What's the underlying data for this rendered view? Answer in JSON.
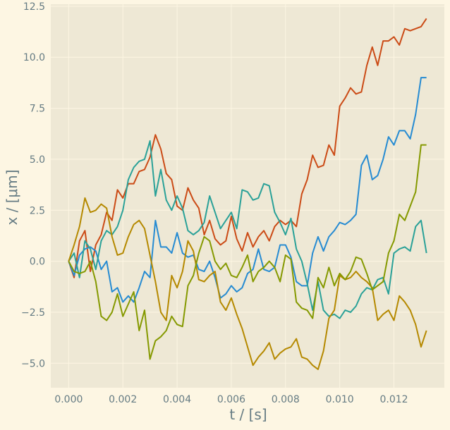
{
  "chart_data": {
    "type": "line",
    "title": "",
    "xlabel": "t / [s]",
    "ylabel": "x / [μm]",
    "xlim": [
      -0.00066,
      0.01386
    ],
    "ylim": [
      -6.2,
      12.6
    ],
    "grid": true,
    "colors": {
      "figure_background": "#fdf6e3",
      "plot_background": "#eee8d5",
      "grid": "#fdf6e3",
      "text": "#657b83"
    },
    "x_ticks": [
      0.0,
      0.002,
      0.004,
      0.006,
      0.008,
      0.01,
      0.012
    ],
    "x_tick_labels": [
      "0.000",
      "0.002",
      "0.004",
      "0.006",
      "0.008",
      "0.010",
      "0.012"
    ],
    "y_ticks": [
      -5.0,
      -2.5,
      0.0,
      2.5,
      5.0,
      7.5,
      10.0,
      12.5
    ],
    "y_tick_labels": [
      "−5.0",
      "−2.5",
      "0.0",
      "2.5",
      "5.0",
      "7.5",
      "10.0",
      "12.5"
    ],
    "x": [
      0.0,
      0.0002,
      0.0004,
      0.0006,
      0.0008,
      0.001,
      0.0012,
      0.0014,
      0.0016,
      0.0018,
      0.002,
      0.0022,
      0.0024,
      0.0026,
      0.0028,
      0.003,
      0.0032,
      0.0034,
      0.0036,
      0.0038,
      0.004,
      0.0042,
      0.0044,
      0.0046,
      0.0048,
      0.005,
      0.0052,
      0.0054,
      0.0056,
      0.0058,
      0.006,
      0.0062,
      0.0064,
      0.0066,
      0.0068,
      0.007,
      0.0072,
      0.0074,
      0.0076,
      0.0078,
      0.008,
      0.0082,
      0.0084,
      0.0086,
      0.0088,
      0.009,
      0.0092,
      0.0094,
      0.0096,
      0.0098,
      0.01,
      0.0102,
      0.0104,
      0.0106,
      0.0108,
      0.011,
      0.0112,
      0.0114,
      0.0116,
      0.0118,
      0.012,
      0.0122,
      0.0124,
      0.0126,
      0.0128,
      0.013,
      0.0132
    ],
    "series": [
      {
        "color": "#cb4b16",
        "values": [
          0.0,
          -0.8,
          1.0,
          1.5,
          -0.5,
          0.8,
          1.3,
          2.4,
          2.0,
          3.5,
          3.1,
          3.8,
          3.8,
          4.4,
          4.5,
          5.1,
          6.2,
          5.5,
          4.3,
          4.0,
          2.7,
          2.5,
          3.6,
          3.0,
          2.6,
          1.3,
          2.0,
          1.1,
          0.8,
          1.0,
          2.2,
          1.1,
          0.5,
          1.4,
          0.7,
          1.2,
          1.5,
          1.0,
          1.7,
          2.0,
          1.8,
          2.0,
          1.7,
          3.3,
          4.0,
          5.2,
          4.6,
          4.7,
          5.7,
          5.2,
          7.6,
          8.0,
          8.5,
          8.2,
          8.3,
          9.6,
          10.5,
          9.6,
          10.8,
          10.8,
          11.0,
          10.6,
          11.4,
          11.3,
          11.4,
          11.5,
          11.9
        ]
      },
      {
        "color": "#268bd2",
        "values": [
          0.0,
          -0.7,
          0.3,
          0.6,
          0.7,
          0.5,
          -0.4,
          0.0,
          -1.5,
          -1.3,
          -2.0,
          -1.7,
          -2.0,
          -1.3,
          -0.5,
          -0.8,
          2.0,
          0.7,
          0.7,
          0.4,
          1.4,
          0.4,
          0.2,
          0.3,
          -0.4,
          -0.5,
          0.0,
          -0.8,
          -1.8,
          -1.6,
          -1.2,
          -1.5,
          -1.3,
          -0.6,
          -0.4,
          0.6,
          -0.4,
          -0.5,
          -0.3,
          0.8,
          0.8,
          0.2,
          -1.0,
          -1.2,
          -1.2,
          0.4,
          1.2,
          0.5,
          1.2,
          1.5,
          1.9,
          1.8,
          2.0,
          2.3,
          4.7,
          5.2,
          4.0,
          4.2,
          5.0,
          6.1,
          5.7,
          6.4,
          6.4,
          6.0,
          7.2,
          9.0,
          9.0
        ]
      },
      {
        "color": "#2aa198",
        "values": [
          0.0,
          0.4,
          -0.8,
          1.0,
          0.6,
          -0.4,
          1.0,
          1.5,
          1.3,
          1.7,
          2.5,
          4.0,
          4.6,
          4.9,
          5.0,
          5.9,
          3.2,
          4.5,
          3.0,
          2.5,
          3.2,
          2.6,
          1.5,
          1.3,
          1.5,
          1.9,
          3.2,
          2.4,
          1.6,
          2.0,
          2.4,
          1.6,
          3.5,
          3.4,
          3.0,
          3.1,
          3.8,
          3.7,
          2.4,
          1.9,
          1.3,
          2.1,
          0.6,
          0.0,
          -1.1,
          -2.4,
          -1.0,
          -2.4,
          -2.7,
          -2.6,
          -2.8,
          -2.4,
          -2.5,
          -2.2,
          -1.6,
          -1.3,
          -1.4,
          -0.9,
          -0.8,
          -1.6,
          0.4,
          0.6,
          0.7,
          0.5,
          1.7,
          2.0,
          0.4
        ]
      },
      {
        "color": "#b58900",
        "values": [
          0.0,
          0.8,
          1.7,
          3.1,
          2.4,
          2.5,
          2.8,
          2.6,
          1.2,
          0.3,
          0.4,
          1.2,
          1.8,
          2.0,
          1.6,
          0.3,
          -1.0,
          -2.5,
          -2.9,
          -0.7,
          -1.3,
          -0.5,
          1.0,
          0.5,
          -0.9,
          -1.0,
          -0.7,
          -0.5,
          -2.0,
          -2.4,
          -1.8,
          -2.6,
          -3.3,
          -4.2,
          -5.1,
          -4.7,
          -4.4,
          -4.0,
          -4.8,
          -4.5,
          -4.3,
          -4.2,
          -3.8,
          -4.7,
          -4.8,
          -5.1,
          -5.3,
          -4.4,
          -2.8,
          -2.4,
          -0.7,
          -0.9,
          -0.8,
          -0.5,
          -0.8,
          -1.0,
          -1.3,
          -2.9,
          -2.6,
          -2.4,
          -2.9,
          -1.7,
          -2.0,
          -2.4,
          -3.1,
          -4.2,
          -3.4
        ]
      },
      {
        "color": "#859900",
        "values": [
          0.0,
          -0.5,
          -0.6,
          -0.5,
          0.0,
          -1.0,
          -2.7,
          -2.9,
          -2.5,
          -1.6,
          -2.7,
          -2.1,
          -1.5,
          -3.4,
          -2.4,
          -4.8,
          -3.9,
          -3.7,
          -3.4,
          -2.7,
          -3.1,
          -3.2,
          -1.2,
          -0.7,
          0.4,
          1.2,
          1.0,
          0.0,
          -0.4,
          -0.1,
          -0.7,
          -0.8,
          -0.3,
          0.3,
          -1.0,
          -0.5,
          -0.3,
          0.0,
          -0.3,
          -1.0,
          0.3,
          0.1,
          -2.0,
          -2.3,
          -2.4,
          -2.8,
          -0.8,
          -1.3,
          -0.3,
          -1.2,
          -0.6,
          -0.9,
          -0.5,
          0.2,
          0.1,
          -0.6,
          -1.4,
          -1.2,
          -1.0,
          0.4,
          1.0,
          2.3,
          2.0,
          2.7,
          3.4,
          5.7,
          5.7
        ]
      }
    ]
  }
}
